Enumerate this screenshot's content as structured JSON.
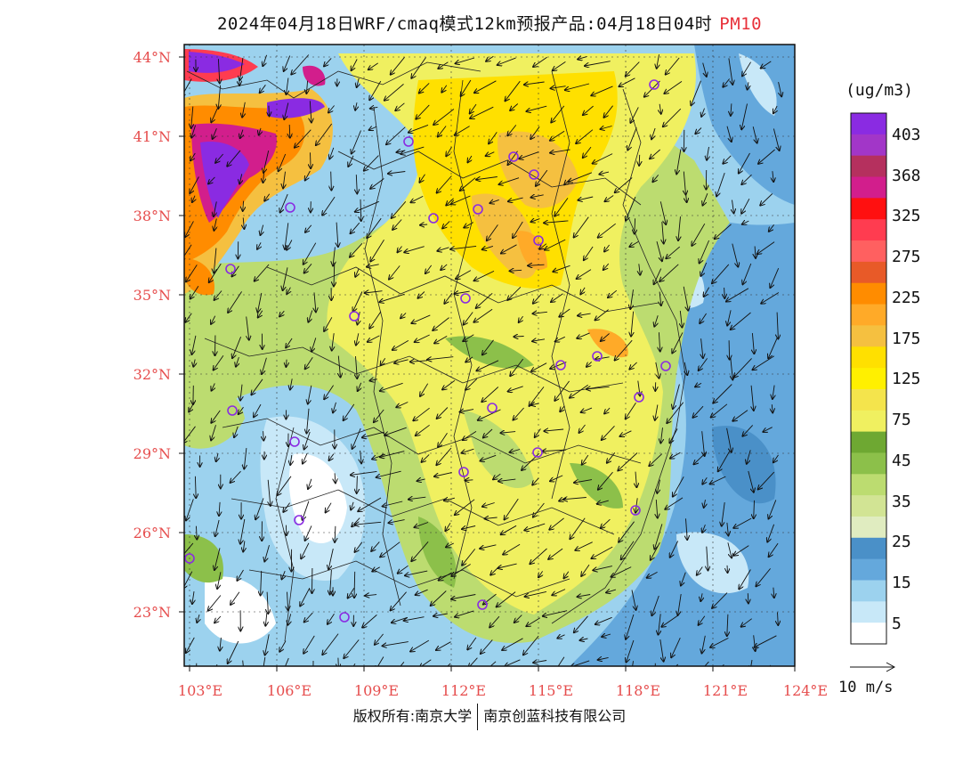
{
  "title": {
    "main": "2024年04月18日WRF/cmaq模式12km预报产品:04月18日04时",
    "species": "PM10"
  },
  "map": {
    "lat_ticks": [
      "44°N",
      "41°N",
      "38°N",
      "35°N",
      "32°N",
      "29°N",
      "26°N",
      "23°N"
    ],
    "lon_ticks": [
      "103°E",
      "106°E",
      "109°E",
      "112°E",
      "115°E",
      "118°E",
      "121°E",
      "124°E"
    ],
    "tick_color": "#e64d4d"
  },
  "colorbar": {
    "unit": "(ug/m3)",
    "labels": [
      "403",
      "368",
      "325",
      "275",
      "225",
      "175",
      "125",
      "75",
      "45",
      "35",
      "25",
      "15",
      "5"
    ],
    "colors": [
      "#8a2be2",
      "#a236c8",
      "#b5305e",
      "#d21e8c",
      "#ff1010",
      "#ff3c50",
      "#ff6060",
      "#e85a28",
      "#ff8c00",
      "#ffaa28",
      "#f5c040",
      "#ffe000",
      "#fff000",
      "#f4e44c",
      "#f0f060",
      "#6ea832",
      "#8cc04a",
      "#bcdc70",
      "#d2e494",
      "#e0ecc0",
      "#4a90c8",
      "#64a8dc",
      "#9cd2ee",
      "#c8e8f8",
      "#ffffff"
    ]
  },
  "wind": {
    "reference": "10 m/s"
  },
  "copyright": {
    "left": "版权所有:南京大学",
    "right": "南京创蓝科技有限公司"
  }
}
